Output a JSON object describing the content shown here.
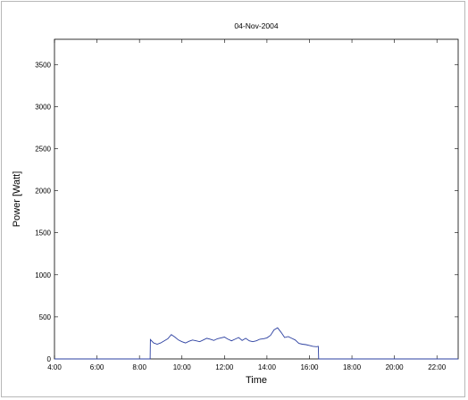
{
  "chart_data": {
    "type": "line",
    "title": "04-Nov-2004",
    "xlabel": "Time",
    "ylabel": "Power [Watt]",
    "xlim": [
      "4:00",
      "23:00"
    ],
    "ylim": [
      0,
      3800
    ],
    "xticks": [
      "4:00",
      "6:00",
      "8:00",
      "10:00",
      "12:00",
      "14:00",
      "16:00",
      "18:00",
      "20:00",
      "22:00"
    ],
    "yticks": [
      0,
      500,
      1000,
      1500,
      2000,
      2500,
      3000,
      3500
    ],
    "grid": false,
    "series": [
      {
        "color": "#2b3fa0",
        "x": [
          "4:00",
          "8:30",
          "8:31",
          "8:40",
          "8:50",
          "9:00",
          "9:10",
          "9:20",
          "9:30",
          "9:40",
          "9:50",
          "10:00",
          "10:10",
          "10:20",
          "10:30",
          "10:40",
          "10:50",
          "11:00",
          "11:10",
          "11:20",
          "11:30",
          "11:40",
          "11:50",
          "12:00",
          "12:10",
          "12:20",
          "12:30",
          "12:40",
          "12:50",
          "13:00",
          "13:10",
          "13:20",
          "13:30",
          "13:40",
          "13:50",
          "14:00",
          "14:10",
          "14:20",
          "14:30",
          "14:40",
          "14:50",
          "15:00",
          "15:10",
          "15:20",
          "15:30",
          "15:40",
          "15:50",
          "16:00",
          "16:10",
          "16:20",
          "16:25",
          "16:26",
          "23:00"
        ],
        "y": [
          0,
          0,
          230,
          190,
          175,
          190,
          215,
          240,
          290,
          260,
          225,
          205,
          190,
          210,
          225,
          215,
          205,
          225,
          245,
          235,
          220,
          240,
          250,
          260,
          235,
          215,
          235,
          255,
          220,
          245,
          215,
          205,
          215,
          235,
          240,
          250,
          280,
          345,
          370,
          315,
          255,
          265,
          245,
          225,
          185,
          175,
          170,
          160,
          150,
          145,
          150,
          0,
          0
        ]
      }
    ]
  }
}
